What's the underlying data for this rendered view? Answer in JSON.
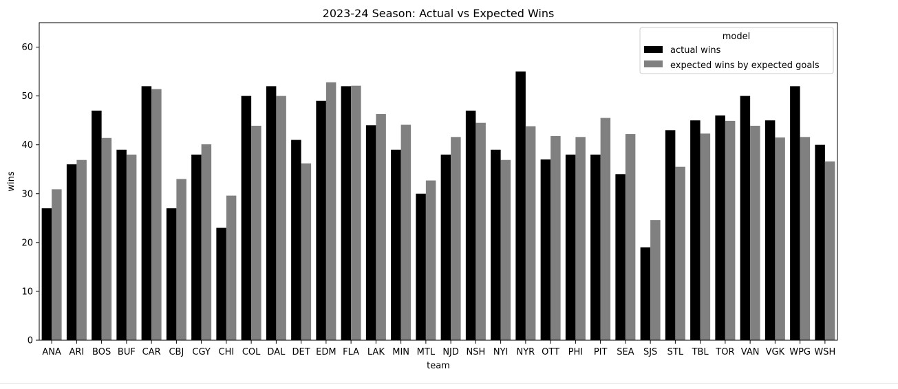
{
  "chart_data": {
    "type": "bar",
    "title": "2023-24 Season: Actual vs Expected Wins",
    "xlabel": "team",
    "ylabel": "wins",
    "ylim": [
      0,
      65
    ],
    "yticks": [
      0,
      10,
      20,
      30,
      40,
      50,
      60
    ],
    "grid": false,
    "legend": {
      "title": "model",
      "placement": "top-right"
    },
    "categories": [
      "ANA",
      "ARI",
      "BOS",
      "BUF",
      "CAR",
      "CBJ",
      "CGY",
      "CHI",
      "COL",
      "DAL",
      "DET",
      "EDM",
      "FLA",
      "LAK",
      "MIN",
      "MTL",
      "NJD",
      "NSH",
      "NYI",
      "NYR",
      "OTT",
      "PHI",
      "PIT",
      "SEA",
      "SJS",
      "STL",
      "TBL",
      "TOR",
      "VAN",
      "VGK",
      "WPG",
      "WSH"
    ],
    "series": [
      {
        "name": "actual wins",
        "color": "#000000",
        "values": [
          27,
          36,
          47,
          39,
          52,
          27,
          38,
          23,
          50,
          52,
          41,
          49,
          52,
          44,
          39,
          30,
          38,
          47,
          39,
          55,
          37,
          38,
          38,
          34,
          19,
          43,
          45,
          46,
          50,
          45,
          52,
          40
        ]
      },
      {
        "name": "expected wins by expected goals",
        "color": "#808080",
        "values": [
          30.9,
          36.9,
          41.4,
          38.0,
          51.4,
          33.0,
          40.1,
          29.6,
          43.9,
          50.0,
          36.2,
          52.8,
          52.1,
          46.3,
          44.1,
          32.7,
          41.6,
          44.5,
          36.9,
          43.8,
          41.8,
          41.6,
          45.5,
          42.2,
          24.6,
          35.5,
          42.3,
          44.9,
          43.9,
          41.5,
          41.6,
          36.6
        ]
      }
    ]
  }
}
